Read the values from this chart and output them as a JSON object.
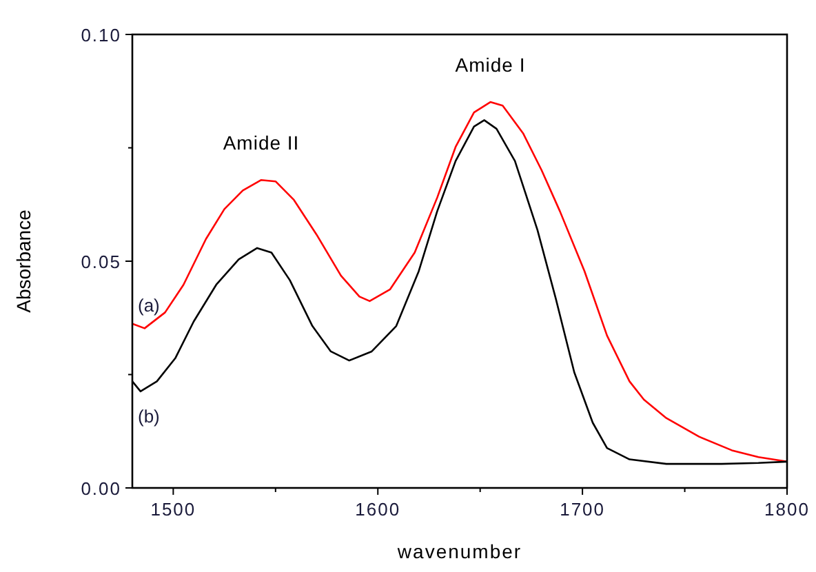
{
  "chart_data": {
    "type": "line",
    "xlabel": "wavenumber",
    "ylabel": "Absorbance",
    "xlim": [
      1480,
      1800
    ],
    "ylim": [
      0,
      0.1
    ],
    "xticks": [
      1500,
      {
        "value": 1550,
        "label": null
      },
      1600,
      {
        "value": 1650,
        "label": null
      },
      1700,
      {
        "value": 1750,
        "label": null
      },
      1800
    ],
    "yticks": [
      {
        "value": 0,
        "label": "0.00"
      },
      {
        "value": 0.025,
        "label": null
      },
      {
        "value": 0.05,
        "label": "0.05"
      },
      {
        "value": 0.075,
        "label": null
      },
      {
        "value": 0.1,
        "label": "0.10"
      }
    ],
    "grid": false,
    "marker": "none",
    "line_style": "solid",
    "annotations": [
      {
        "text": "Amide II",
        "x": 1543,
        "y": 0.0679
      },
      {
        "text": "Amide I",
        "x": 1655,
        "y": 0.0851
      }
    ],
    "series": [
      {
        "name": "(a)",
        "color": "#ff0000",
        "x": [
          1480,
          1486,
          1496,
          1505,
          1516,
          1525,
          1534,
          1543,
          1550,
          1559,
          1570,
          1582,
          1591,
          1596,
          1606,
          1618,
          1629,
          1638,
          1647,
          1655,
          1661,
          1671,
          1680,
          1689,
          1701,
          1712,
          1723,
          1730,
          1741,
          1757,
          1773,
          1786,
          1800
        ],
        "values": [
          0.0362,
          0.0352,
          0.0387,
          0.0448,
          0.0549,
          0.0615,
          0.0656,
          0.0679,
          0.0676,
          0.0635,
          0.0559,
          0.0468,
          0.0422,
          0.0412,
          0.0438,
          0.0519,
          0.064,
          0.0752,
          0.0828,
          0.0851,
          0.0843,
          0.0782,
          0.0701,
          0.061,
          0.0478,
          0.0336,
          0.0235,
          0.0195,
          0.0154,
          0.0113,
          0.0083,
          0.0068,
          0.0058
        ]
      },
      {
        "name": "(b)",
        "color": "#000000",
        "x": [
          1480,
          1484,
          1492,
          1501,
          1510,
          1521,
          1532,
          1541,
          1548,
          1557,
          1568,
          1577,
          1586,
          1597,
          1609,
          1620,
          1629,
          1638,
          1647,
          1652,
          1658,
          1667,
          1678,
          1687,
          1696,
          1705,
          1712,
          1723,
          1741,
          1768,
          1786,
          1800
        ],
        "values": [
          0.0235,
          0.0213,
          0.0235,
          0.0286,
          0.0367,
          0.0448,
          0.0504,
          0.0529,
          0.0519,
          0.0458,
          0.0357,
          0.0301,
          0.0281,
          0.0301,
          0.0357,
          0.0478,
          0.061,
          0.0721,
          0.0797,
          0.0811,
          0.0792,
          0.0721,
          0.0569,
          0.0417,
          0.0255,
          0.0144,
          0.0088,
          0.0063,
          0.0053,
          0.0053,
          0.0055,
          0.0058
        ]
      }
    ]
  }
}
